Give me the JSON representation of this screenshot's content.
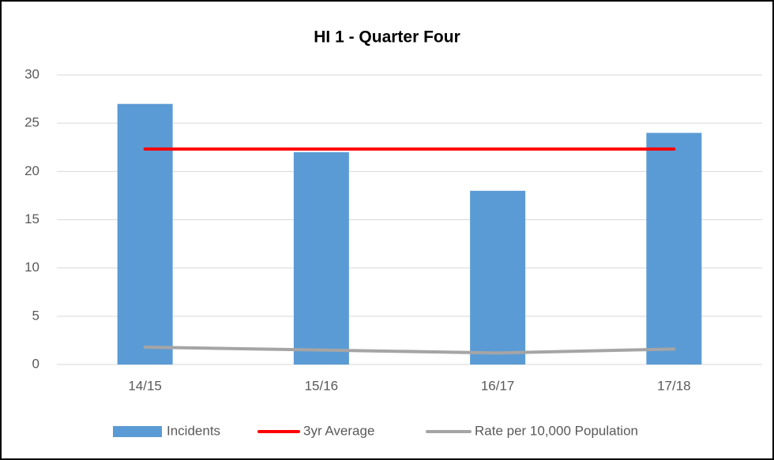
{
  "chart_data": {
    "type": "bar",
    "title": "HI 1 - Quarter Four",
    "categories": [
      "14/15",
      "15/16",
      "16/17",
      "17/18"
    ],
    "series": [
      {
        "name": "Incidents",
        "type": "bar",
        "color": "#5b9bd5",
        "values": [
          27,
          22,
          18,
          24
        ]
      },
      {
        "name": "3yr Average",
        "type": "line",
        "color": "#ff0000",
        "values": [
          22.33,
          22.33,
          22.33,
          22.33
        ]
      },
      {
        "name": "Rate per 10,000 Population",
        "type": "line",
        "color": "#a5a5a5",
        "values": [
          1.8,
          1.5,
          1.2,
          1.6
        ]
      }
    ],
    "ylim": [
      0,
      30
    ],
    "yticks": [
      0,
      5,
      10,
      15,
      20,
      25,
      30
    ],
    "grid": true,
    "legend": "bottom"
  }
}
